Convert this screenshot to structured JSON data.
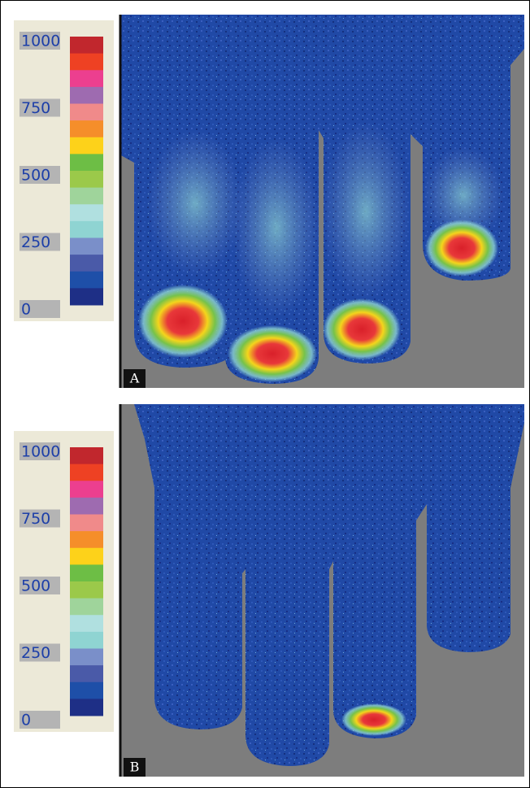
{
  "panels": [
    {
      "label": "A",
      "scale": {
        "ticks": [
          "1000",
          "750",
          "500",
          "250",
          "0"
        ]
      }
    },
    {
      "label": "B",
      "scale": {
        "ticks": [
          "1000",
          "750",
          "500",
          "250",
          "0"
        ]
      }
    }
  ],
  "scale_colors": [
    "#c1272d",
    "#ee4123",
    "#ec3f8f",
    "#9e6bb0",
    "#f08a8a",
    "#f58e2a",
    "#fdd21a",
    "#6dbe45",
    "#9bc94a",
    "#9fd49b",
    "#b0e0e0",
    "#8fd4d2",
    "#7a8fc9",
    "#4a5aa8",
    "#1e4fa8",
    "#1e2f86"
  ]
}
